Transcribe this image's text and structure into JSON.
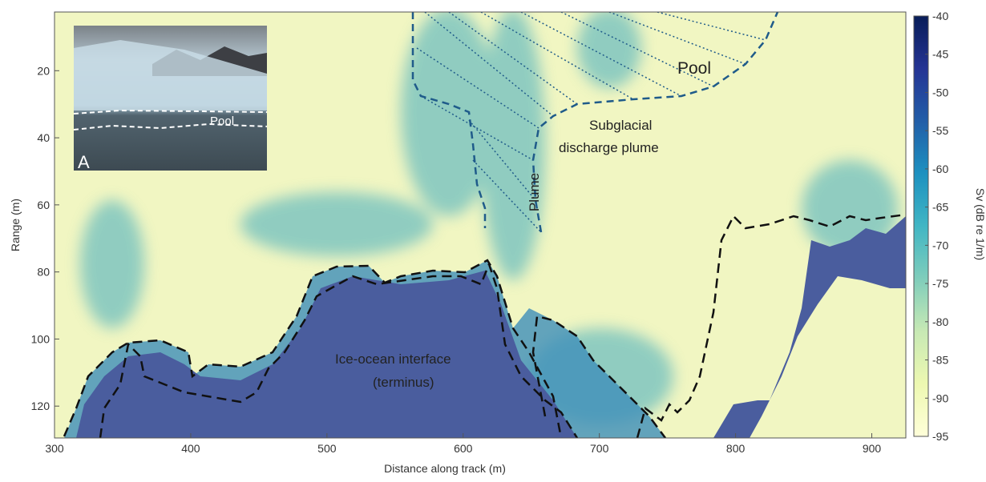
{
  "chart_data": {
    "type": "heatmap",
    "xlabel": "Distance along track (m)",
    "ylabel": "Range (m)",
    "xlim": [
      300,
      925
    ],
    "xticks": [
      300,
      400,
      500,
      600,
      700,
      800,
      900
    ],
    "ylim": [
      129.5,
      2.5
    ],
    "yticks": [
      20,
      40,
      60,
      80,
      100,
      120
    ],
    "colorbar": {
      "label": "Sv (dB re 1/m)",
      "lim": [
        -95,
        -40
      ],
      "ticks": [
        -95,
        -90,
        -85,
        -80,
        -75,
        -70,
        -65,
        -60,
        -55,
        -50,
        -45,
        -40
      ],
      "colormap": [
        "#ffffd9",
        "#edf8b1",
        "#c7e9b4",
        "#7fcdbb",
        "#41b6c4",
        "#1d91c0",
        "#225ea8",
        "#253494",
        "#081d58"
      ]
    },
    "annotations": [
      "Pool",
      "Subglacial",
      "discharge plume",
      "Plume",
      "Ice-ocean interface",
      "(terminus)"
    ],
    "inset": {
      "label": "Pool",
      "panel": "A"
    }
  }
}
